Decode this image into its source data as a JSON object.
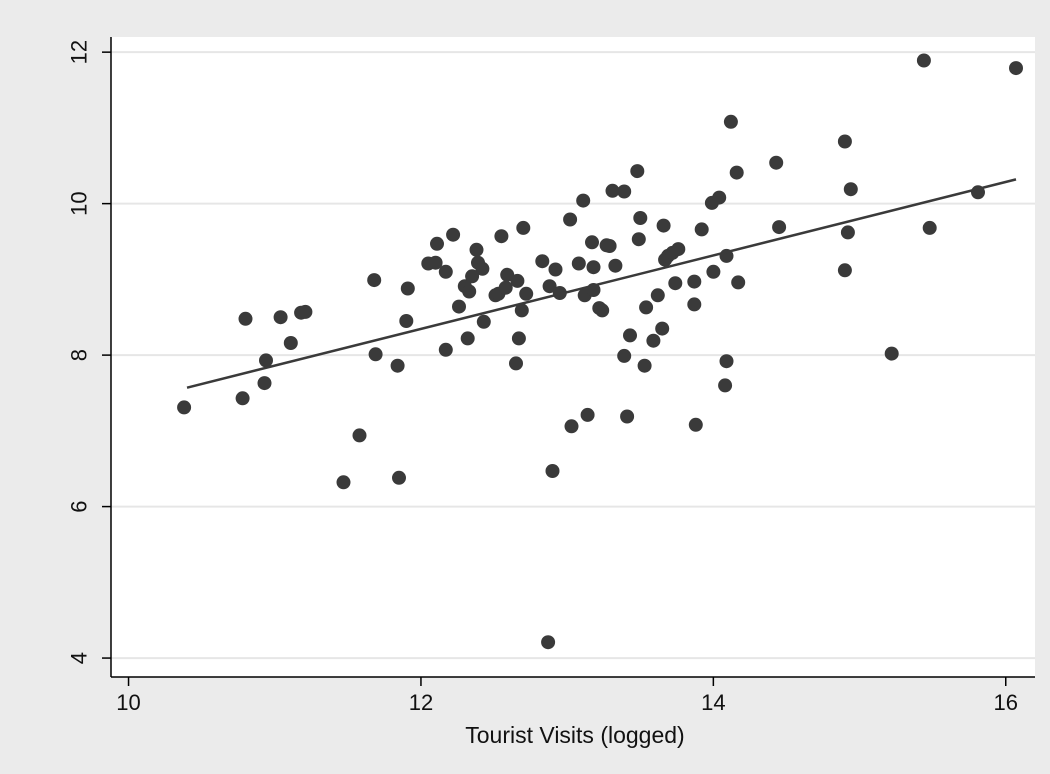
{
  "chart_data": {
    "type": "scatter",
    "title": "",
    "xlabel": "Tourist Visits (logged)",
    "ylabel": "",
    "xlim": [
      9.88,
      16.2
    ],
    "ylim": [
      3.75,
      12.2
    ],
    "x_ticks": [
      10,
      12,
      14,
      16
    ],
    "y_ticks": [
      4,
      6,
      8,
      10,
      12
    ],
    "grid": "horizontal",
    "colors": {
      "points": "#3a3a3a",
      "fit_line": "#3a3a3a",
      "plot_bg": "#ffffff",
      "outer_bg": "#ebebeb",
      "grid": "#e6e6e6"
    },
    "fit_line": {
      "x": [
        10.4,
        16.07
      ],
      "y": [
        7.57,
        10.32
      ]
    },
    "series": [
      {
        "points": [
          [
            10.38,
            7.31
          ],
          [
            10.78,
            7.43
          ],
          [
            10.8,
            8.48
          ],
          [
            10.93,
            7.63
          ],
          [
            10.94,
            7.93
          ],
          [
            11.04,
            8.5
          ],
          [
            11.11,
            8.16
          ],
          [
            11.18,
            8.56
          ],
          [
            11.21,
            8.57
          ],
          [
            11.47,
            6.32
          ],
          [
            11.58,
            6.94
          ],
          [
            11.68,
            8.99
          ],
          [
            11.69,
            8.01
          ],
          [
            11.84,
            7.86
          ],
          [
            11.85,
            6.38
          ],
          [
            11.9,
            8.45
          ],
          [
            11.91,
            8.88
          ],
          [
            12.05,
            9.21
          ],
          [
            12.1,
            9.22
          ],
          [
            12.11,
            9.47
          ],
          [
            12.17,
            8.07
          ],
          [
            12.17,
            9.1
          ],
          [
            12.22,
            9.59
          ],
          [
            12.26,
            8.64
          ],
          [
            12.3,
            8.91
          ],
          [
            12.32,
            8.22
          ],
          [
            12.33,
            8.84
          ],
          [
            12.35,
            9.04
          ],
          [
            12.38,
            9.39
          ],
          [
            12.39,
            9.22
          ],
          [
            12.42,
            9.14
          ],
          [
            12.43,
            8.44
          ],
          [
            12.51,
            8.79
          ],
          [
            12.53,
            8.81
          ],
          [
            12.55,
            9.57
          ],
          [
            12.58,
            8.89
          ],
          [
            12.59,
            9.06
          ],
          [
            12.65,
            7.89
          ],
          [
            12.66,
            8.98
          ],
          [
            12.67,
            8.22
          ],
          [
            12.69,
            8.59
          ],
          [
            12.7,
            9.68
          ],
          [
            12.72,
            8.81
          ],
          [
            12.83,
            9.24
          ],
          [
            12.87,
            4.21
          ],
          [
            12.88,
            8.91
          ],
          [
            12.9,
            6.47
          ],
          [
            12.92,
            9.13
          ],
          [
            12.95,
            8.82
          ],
          [
            13.02,
            9.79
          ],
          [
            13.03,
            7.06
          ],
          [
            13.08,
            9.21
          ],
          [
            13.11,
            10.04
          ],
          [
            13.12,
            8.79
          ],
          [
            13.14,
            7.21
          ],
          [
            13.17,
            9.49
          ],
          [
            13.18,
            9.16
          ],
          [
            13.18,
            8.86
          ],
          [
            13.22,
            8.62
          ],
          [
            13.24,
            8.59
          ],
          [
            13.27,
            9.45
          ],
          [
            13.29,
            9.44
          ],
          [
            13.31,
            10.17
          ],
          [
            13.33,
            9.18
          ],
          [
            13.39,
            7.99
          ],
          [
            13.39,
            10.16
          ],
          [
            13.41,
            7.19
          ],
          [
            13.43,
            8.26
          ],
          [
            13.48,
            10.43
          ],
          [
            13.49,
            9.53
          ],
          [
            13.5,
            9.81
          ],
          [
            13.53,
            7.86
          ],
          [
            13.54,
            8.63
          ],
          [
            13.59,
            8.19
          ],
          [
            13.62,
            8.79
          ],
          [
            13.65,
            8.35
          ],
          [
            13.66,
            9.71
          ],
          [
            13.67,
            9.26
          ],
          [
            13.69,
            9.31
          ],
          [
            13.72,
            9.35
          ],
          [
            13.74,
            8.95
          ],
          [
            13.76,
            9.4
          ],
          [
            13.87,
            8.67
          ],
          [
            13.87,
            8.97
          ],
          [
            13.88,
            7.08
          ],
          [
            13.92,
            9.66
          ],
          [
            13.99,
            10.01
          ],
          [
            14.0,
            9.1
          ],
          [
            14.04,
            10.08
          ],
          [
            14.08,
            7.6
          ],
          [
            14.09,
            7.92
          ],
          [
            14.09,
            9.31
          ],
          [
            14.12,
            11.08
          ],
          [
            14.16,
            10.41
          ],
          [
            14.17,
            8.96
          ],
          [
            14.43,
            10.54
          ],
          [
            14.45,
            9.69
          ],
          [
            14.9,
            10.82
          ],
          [
            14.9,
            9.12
          ],
          [
            14.92,
            9.62
          ],
          [
            14.94,
            10.19
          ],
          [
            15.22,
            8.02
          ],
          [
            15.44,
            11.89
          ],
          [
            15.48,
            9.68
          ],
          [
            15.81,
            10.15
          ],
          [
            16.07,
            11.79
          ]
        ]
      }
    ]
  }
}
